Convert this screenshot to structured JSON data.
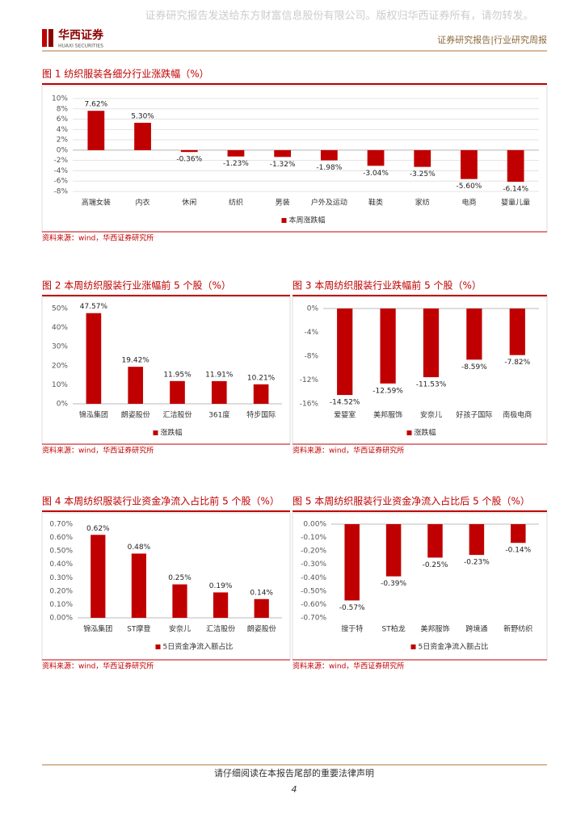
{
  "header": {
    "watermark": "证券研究报告发送给东方财富信息股份有限公司。版权归华西证券所有，请勿转发。",
    "logo": "华西证券",
    "logo_en": "HUAXI SECURITIES",
    "report_type": "证券研究报告|行业研究周报"
  },
  "chart_data": [
    {
      "type": "bar",
      "title": "图 1 纺织服装各细分行业涨跌幅（%）",
      "source": "资料来源：wind，华西证券研究所",
      "grid": true,
      "categories": [
        "高端女装",
        "内衣",
        "休闲",
        "纺织",
        "男装",
        "户外及运动",
        "鞋类",
        "家纺",
        "电商",
        "婴童儿童"
      ],
      "series": [
        {
          "name": "本周涨跌幅",
          "color": "#c00000",
          "values": [
            7.62,
            5.3,
            -0.36,
            -1.23,
            -1.32,
            -1.98,
            -3.04,
            -3.25,
            -5.6,
            -6.14
          ],
          "value_labels": [
            "7.62%",
            "5.30%",
            "-0.36%",
            "-1.23%",
            "-1.32%",
            "-1.98%",
            "-3.04%",
            "-3.25%",
            "-5.60%",
            "-6.14%"
          ]
        }
      ],
      "ylim": [
        -8,
        10
      ],
      "yticks": [
        {
          "value": -8,
          "label": "-8%"
        },
        {
          "value": -6,
          "label": "-6%"
        },
        {
          "value": -4,
          "label": "-4%"
        },
        {
          "value": -2,
          "label": "-2%"
        },
        {
          "value": 0,
          "label": "0%"
        },
        {
          "value": 2,
          "label": "2%"
        },
        {
          "value": 4,
          "label": "4%"
        },
        {
          "value": 6,
          "label": "6%"
        },
        {
          "value": 8,
          "label": "8%"
        },
        {
          "value": 10,
          "label": "10%"
        }
      ]
    },
    {
      "type": "bar",
      "title": "图 2 本周纺织服装行业涨幅前 5 个股（%）",
      "source": "资料来源：wind，华西证券研究所",
      "grid": false,
      "categories": [
        "锦泓集团",
        "朗姿股份",
        "汇洁股份",
        "361度",
        "特步国际"
      ],
      "series": [
        {
          "name": "涨跌幅",
          "color": "#c00000",
          "values": [
            47.57,
            19.42,
            11.95,
            11.91,
            10.21
          ],
          "value_labels": [
            "47.57%",
            "19.42%",
            "11.95%",
            "11.91%",
            "10.21%"
          ]
        }
      ],
      "ylim": [
        0,
        50
      ],
      "yticks": [
        {
          "value": 0,
          "label": "0%"
        },
        {
          "value": 10,
          "label": "10%"
        },
        {
          "value": 20,
          "label": "20%"
        },
        {
          "value": 30,
          "label": "30%"
        },
        {
          "value": 40,
          "label": "40%"
        },
        {
          "value": 50,
          "label": "50%"
        }
      ]
    },
    {
      "type": "bar",
      "title": "图 3 本周纺织服装行业跌幅前 5 个股（%）",
      "source": "资料来源：wind，华西证券研究所",
      "grid": false,
      "categories": [
        "爱婴室",
        "美邦服饰",
        "安奈儿",
        "好孩子国际",
        "南极电商"
      ],
      "series": [
        {
          "name": "涨跌幅",
          "color": "#c00000",
          "values": [
            -14.52,
            -12.59,
            -11.53,
            -8.59,
            -7.82
          ],
          "value_labels": [
            "-14.52%",
            "-12.59%",
            "-11.53%",
            "-8.59%",
            "-7.82%"
          ]
        }
      ],
      "ylim": [
        -16,
        0
      ],
      "yticks": [
        {
          "value": -16,
          "label": "-16%"
        },
        {
          "value": -12,
          "label": "-12%"
        },
        {
          "value": -8,
          "label": "-8%"
        },
        {
          "value": -4,
          "label": "-4%"
        },
        {
          "value": 0,
          "label": "0%"
        }
      ]
    },
    {
      "type": "bar",
      "title": "图 4 本周纺织服装行业资金净流入占比前 5 个股（%）",
      "source": "资料来源：wind，华西证券研究所",
      "grid": false,
      "categories": [
        "锦泓集团",
        "ST摩登",
        "安奈儿",
        "汇洁股份",
        "朗姿股份"
      ],
      "series": [
        {
          "name": "5日资金净流入额占比",
          "color": "#c00000",
          "values": [
            0.62,
            0.48,
            0.25,
            0.19,
            0.14
          ],
          "value_labels": [
            "0.62%",
            "0.48%",
            "0.25%",
            "0.19%",
            "0.14%"
          ]
        }
      ],
      "ylim": [
        0,
        0.7
      ],
      "yticks": [
        {
          "value": 0,
          "label": "0.00%"
        },
        {
          "value": 0.1,
          "label": "0.10%"
        },
        {
          "value": 0.2,
          "label": "0.20%"
        },
        {
          "value": 0.3,
          "label": "0.30%"
        },
        {
          "value": 0.4,
          "label": "0.40%"
        },
        {
          "value": 0.5,
          "label": "0.50%"
        },
        {
          "value": 0.6,
          "label": "0.60%"
        },
        {
          "value": 0.7,
          "label": "0.70%"
        }
      ]
    },
    {
      "type": "bar",
      "title": "图 5 本周纺织服装行业资金净流入占比后 5 个股（%）",
      "source": "资料来源：wind，华西证券研究所",
      "grid": false,
      "categories": [
        "搜于特",
        "ST柏龙",
        "美邦服饰",
        "跨境通",
        "新野纺织"
      ],
      "series": [
        {
          "name": "5日资金净流入额占比",
          "color": "#c00000",
          "values": [
            -0.57,
            -0.39,
            -0.25,
            -0.23,
            -0.14
          ],
          "value_labels": [
            "-0.57%",
            "-0.39%",
            "-0.25%",
            "-0.23%",
            "-0.14%"
          ]
        }
      ],
      "ylim": [
        -0.7,
        0
      ],
      "yticks": [
        {
          "value": -0.7,
          "label": "-0.70%"
        },
        {
          "value": -0.6,
          "label": "-0.60%"
        },
        {
          "value": -0.5,
          "label": "-0.50%"
        },
        {
          "value": -0.4,
          "label": "-0.40%"
        },
        {
          "value": -0.3,
          "label": "-0.30%"
        },
        {
          "value": -0.2,
          "label": "-0.20%"
        },
        {
          "value": -0.1,
          "label": "-0.10%"
        },
        {
          "value": 0,
          "label": "0.00%"
        }
      ]
    }
  ],
  "footer": {
    "notice": "请仔细阅读在本报告尾部的重要法律声明",
    "page": "4"
  }
}
